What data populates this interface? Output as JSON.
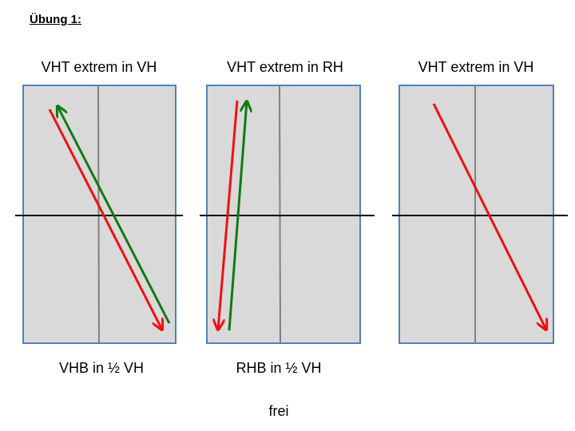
{
  "heading": "Übung 1:",
  "panels": [
    {
      "top_label": "VHT extrem in VH",
      "bottom_label": "VHB in ½ VH"
    },
    {
      "top_label": "VHT extrem in RH",
      "bottom_label": "RHB in ½ VH"
    },
    {
      "top_label": "VHT extrem in VH",
      "bottom_label": ""
    }
  ],
  "footer": "frei",
  "colors": {
    "panel_fill": "#d9d9d9",
    "panel_border": "#4f81bd",
    "divider": "#808080",
    "horizontal_line": "#000000",
    "arrow_red": "#ee1111",
    "arrow_green": "#117a11"
  }
}
